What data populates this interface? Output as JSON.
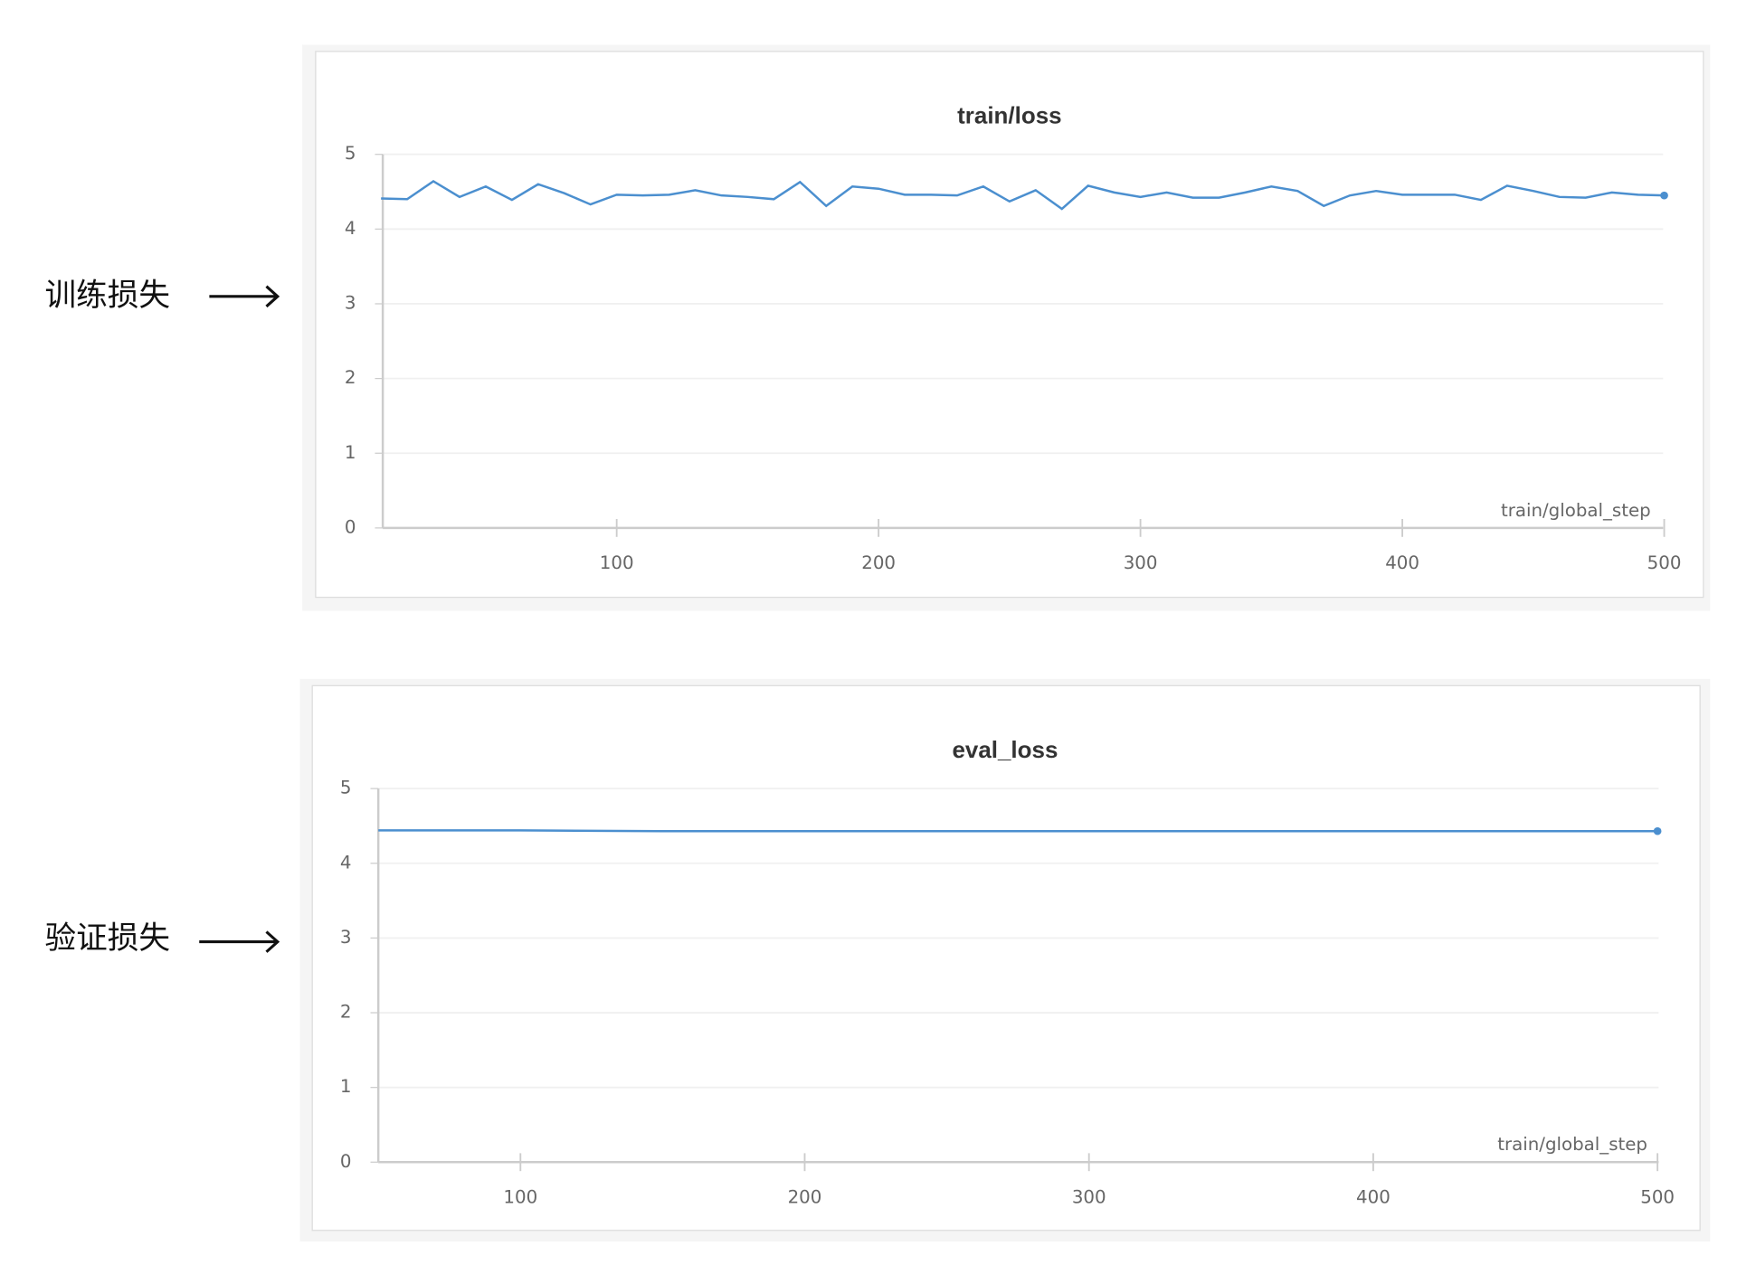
{
  "annotations": [
    "训练损失",
    "验证损失"
  ],
  "chart_data": [
    {
      "type": "line",
      "title": "train/loss",
      "x_label": "train/global_step",
      "x": [
        10,
        20,
        30,
        40,
        50,
        60,
        70,
        80,
        90,
        100,
        110,
        120,
        130,
        140,
        150,
        160,
        170,
        180,
        190,
        200,
        210,
        220,
        230,
        240,
        250,
        260,
        270,
        280,
        290,
        300,
        310,
        320,
        330,
        340,
        350,
        360,
        370,
        380,
        390,
        400,
        410,
        420,
        430,
        440,
        450,
        460,
        470,
        480,
        490,
        500
      ],
      "series": [
        {
          "name": "train/loss",
          "color": "#4b8fcf",
          "values": [
            4.41,
            4.4,
            4.64,
            4.43,
            4.57,
            4.39,
            4.6,
            4.48,
            4.33,
            4.46,
            4.45,
            4.46,
            4.52,
            4.45,
            4.43,
            4.4,
            4.63,
            4.31,
            4.57,
            4.54,
            4.46,
            4.46,
            4.45,
            4.57,
            4.37,
            4.52,
            4.27,
            4.58,
            4.49,
            4.43,
            4.49,
            4.42,
            4.42,
            4.49,
            4.57,
            4.51,
            4.31,
            4.45,
            4.51,
            4.46,
            4.46,
            4.46,
            4.39,
            4.58,
            4.51,
            4.43,
            4.42,
            4.49,
            4.46,
            4.45
          ]
        }
      ],
      "xlim": [
        10,
        500
      ],
      "xticks": [
        100,
        200,
        300,
        400,
        500
      ],
      "ylim": [
        0,
        5
      ],
      "yticks": [
        0,
        1,
        2,
        3,
        4,
        5
      ],
      "grid": true
    },
    {
      "type": "line",
      "title": "eval_loss",
      "x_label": "train/global_step",
      "x": [
        50,
        100,
        150,
        200,
        250,
        300,
        350,
        400,
        450,
        500
      ],
      "series": [
        {
          "name": "eval_loss",
          "color": "#4b8fcf",
          "values": [
            4.44,
            4.44,
            4.43,
            4.43,
            4.43,
            4.43,
            4.43,
            4.43,
            4.43,
            4.43
          ]
        }
      ],
      "xlim": [
        50,
        500
      ],
      "xticks": [
        100,
        200,
        300,
        400,
        500
      ],
      "ylim": [
        0,
        5
      ],
      "yticks": [
        0,
        1,
        2,
        3,
        4,
        5
      ],
      "grid": true
    }
  ]
}
